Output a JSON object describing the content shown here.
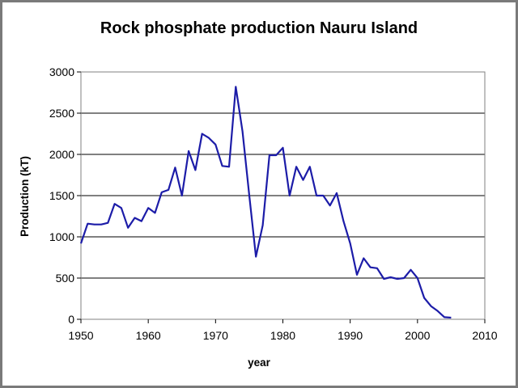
{
  "chart_data": {
    "type": "line",
    "title": "Rock phosphate production Nauru Island",
    "xlabel": "year",
    "ylabel": "Production (kT)",
    "xlim": [
      1950,
      2010
    ],
    "ylim": [
      0,
      3000
    ],
    "x_ticks": [
      "1950",
      "1960",
      "1970",
      "1980",
      "1990",
      "2000",
      "2010"
    ],
    "y_ticks": [
      "0",
      "500",
      "1000",
      "1500",
      "2000",
      "2500",
      "3000"
    ],
    "grid": true,
    "legend": "none",
    "colors": {
      "line": "#1c1ca8",
      "grid": "#000000",
      "plot_border": "#808080"
    },
    "series": [
      {
        "x": [
          1950,
          1951,
          1952,
          1953,
          1954,
          1955,
          1956,
          1957,
          1958,
          1959,
          1960,
          1961,
          1962,
          1963,
          1964,
          1965,
          1966,
          1967,
          1968,
          1969,
          1970,
          1971,
          1972,
          1973,
          1974,
          1975,
          1976,
          1977,
          1978,
          1979,
          1980,
          1981,
          1982,
          1983,
          1984,
          1985,
          1986,
          1987,
          1988,
          1989,
          1990,
          1991,
          1992,
          1993,
          1994,
          1995,
          1996,
          1997,
          1998,
          1999,
          2000,
          2001,
          2002,
          2003,
          2004,
          2005
        ],
        "values": [
          920,
          1160,
          1150,
          1150,
          1170,
          1400,
          1350,
          1110,
          1230,
          1190,
          1350,
          1290,
          1540,
          1570,
          1840,
          1500,
          2040,
          1810,
          2250,
          2200,
          2120,
          1860,
          1850,
          2820,
          2280,
          1510,
          760,
          1140,
          1990,
          1990,
          2080,
          1500,
          1850,
          1690,
          1850,
          1500,
          1500,
          1380,
          1530,
          1190,
          920,
          540,
          740,
          630,
          620,
          490,
          510,
          490,
          500,
          600,
          500,
          260,
          160,
          100,
          25,
          20
        ]
      }
    ]
  }
}
